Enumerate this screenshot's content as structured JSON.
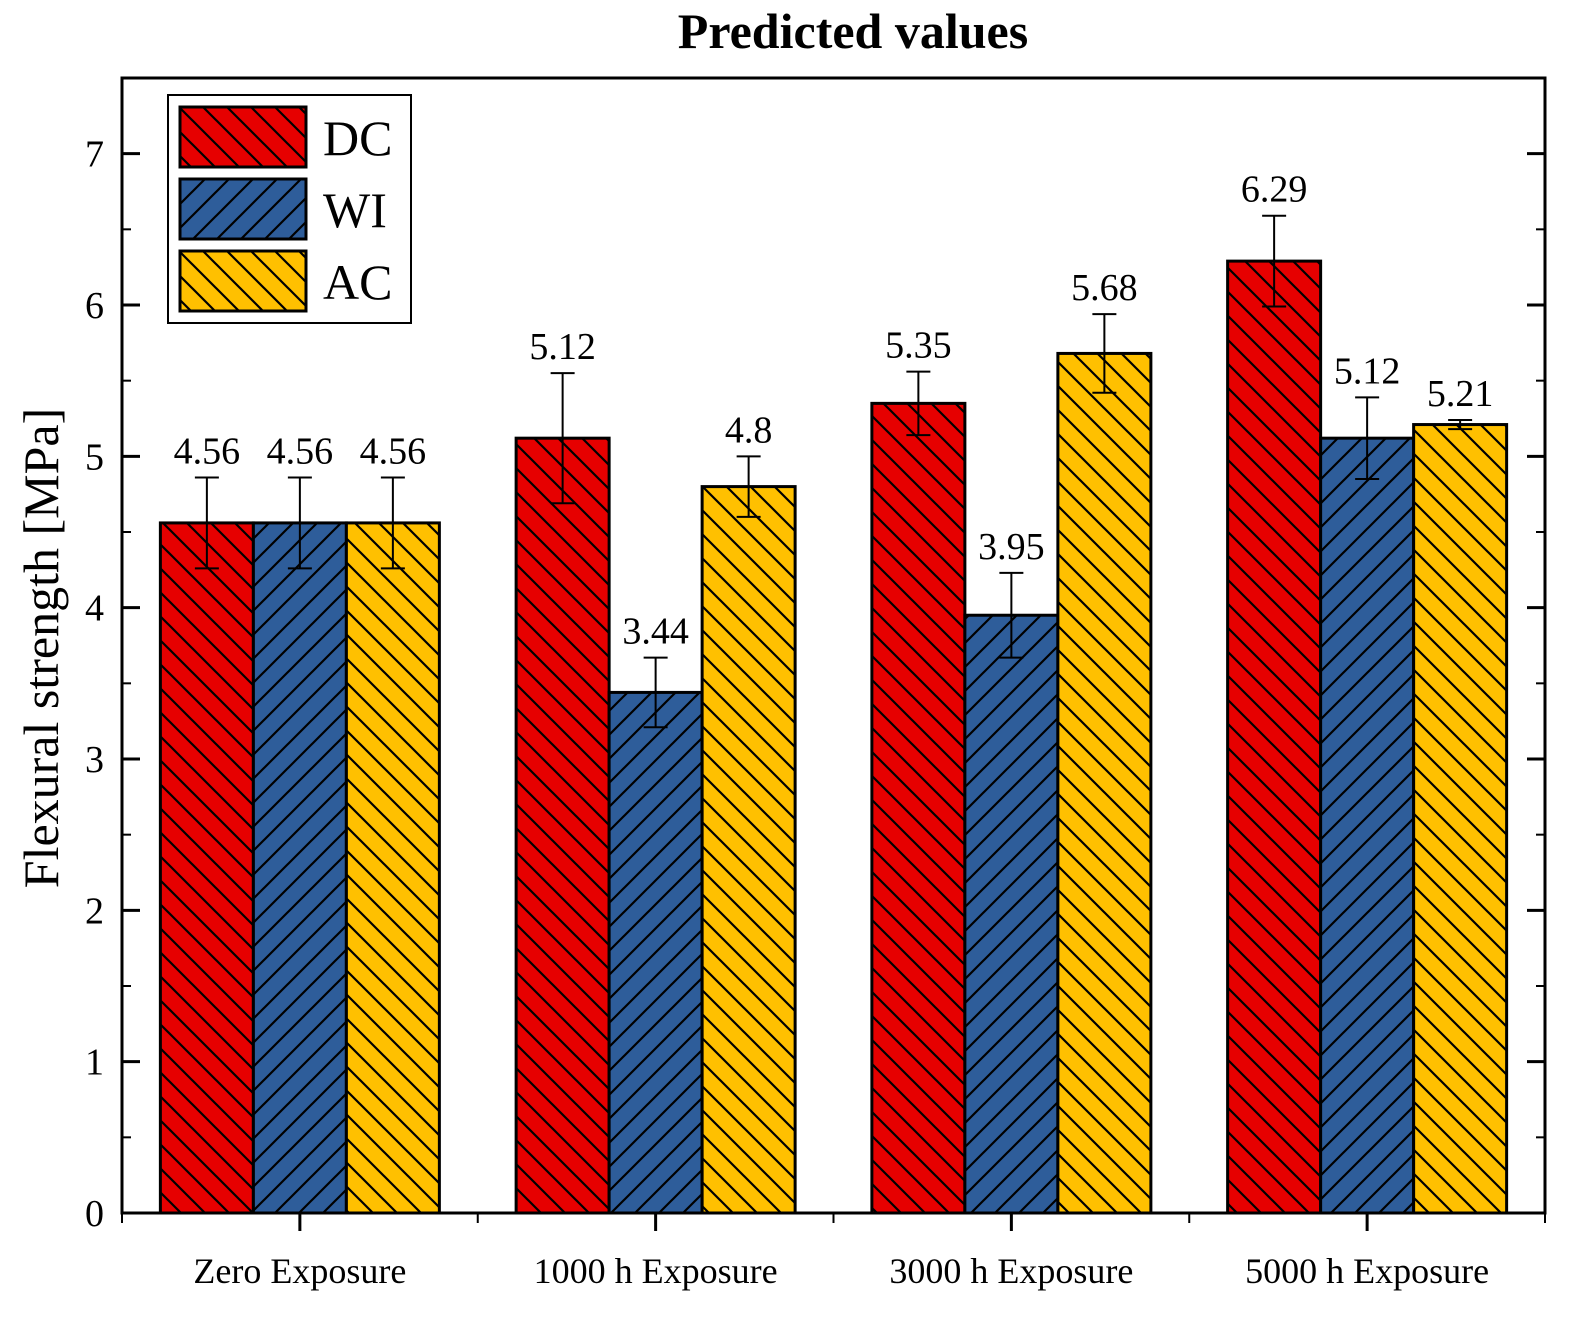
{
  "chart_data": {
    "type": "bar",
    "title": "Predicted values",
    "xlabel": "",
    "ylabel": "Flexural strength [MPa]",
    "ylim": [
      0,
      7.5
    ],
    "yticks": [
      "0",
      "1",
      "2",
      "3",
      "4",
      "5",
      "6",
      "7"
    ],
    "categories": [
      "Zero Exposure",
      "1000 h Exposure",
      "3000 h Exposure",
      "5000 h Exposure"
    ],
    "legend_position": "top-left",
    "grid": false,
    "series": [
      {
        "name": "DC",
        "color": "#e60000",
        "hatch": "backslash",
        "values": [
          4.56,
          5.12,
          5.35,
          6.29
        ],
        "errors": [
          0.3,
          0.43,
          0.21,
          0.3
        ],
        "labels": [
          "4.56",
          "5.12",
          "5.35",
          "6.29"
        ]
      },
      {
        "name": "WI",
        "color": "#2e5d9a",
        "hatch": "slash",
        "values": [
          4.56,
          3.44,
          3.95,
          5.12
        ],
        "errors": [
          0.3,
          0.23,
          0.28,
          0.27
        ],
        "labels": [
          "4.56",
          "3.44",
          "3.95",
          "5.12"
        ]
      },
      {
        "name": "AC",
        "color": "#ffc000",
        "hatch": "backslash",
        "values": [
          4.56,
          4.8,
          5.68,
          5.21
        ],
        "errors": [
          0.3,
          0.2,
          0.26,
          0.03
        ],
        "labels": [
          "4.56",
          "4.8",
          "5.68",
          "5.21"
        ]
      }
    ]
  }
}
